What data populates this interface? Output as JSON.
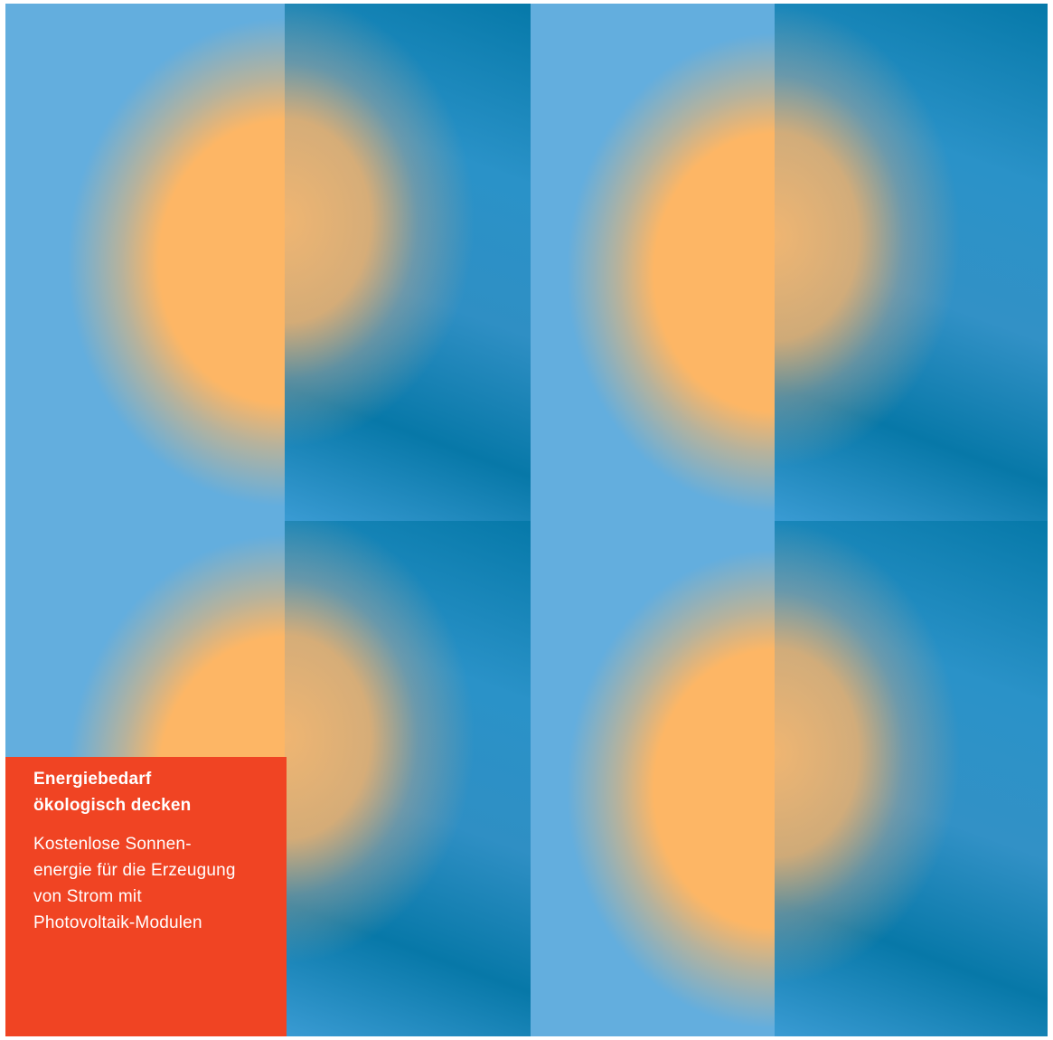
{
  "info_box": {
    "title": "Energiebedarf\nökologisch decken",
    "body": "Kostenlose Sonnen-\nenergie für die Erzeugung\nvon Strom mit\nPhotovoltaik-Modulen"
  },
  "colors": {
    "light_blue": "#63aede",
    "dark_blue": "#0679a9",
    "sun_orange": "#fdb665",
    "box_red": "#f04423"
  }
}
